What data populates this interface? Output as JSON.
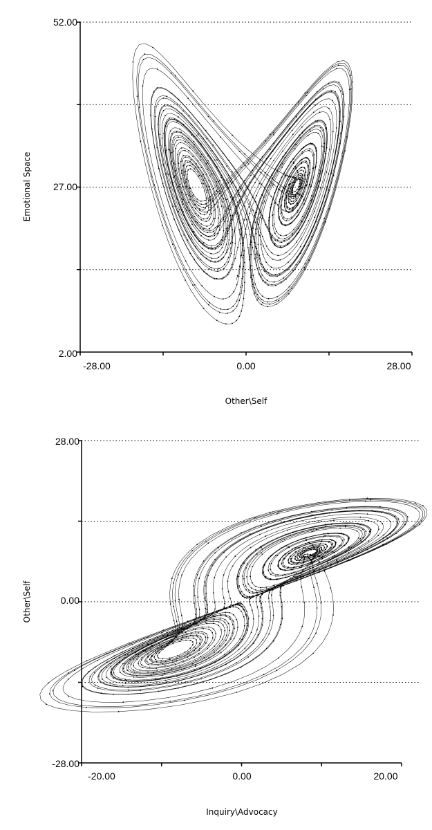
{
  "chart_data": [
    {
      "type": "line",
      "title": "",
      "xlabel": "Other\\Self",
      "ylabel": "Emotional Space",
      "xlim": [
        -28,
        28
      ],
      "ylim": [
        2,
        52
      ],
      "grid": "dotted horizontal",
      "x_ticks": [
        -28,
        -14,
        0,
        14,
        28
      ],
      "y_ticks": [
        2,
        14.5,
        27,
        39.5,
        52
      ],
      "x_tick_labels": [
        "-28.00",
        "0.00",
        "28.00"
      ],
      "y_tick_labels": [
        "52.00",
        "27.00",
        "2.00"
      ],
      "series": [
        {
          "trajectory": "lorenz_xz",
          "x_range": [
            -20,
            19
          ],
          "y_range": [
            9,
            51
          ],
          "lobe_centers": [
            [
              -8.5,
              27
            ],
            [
              8.5,
              27
            ]
          ]
        }
      ]
    },
    {
      "type": "line",
      "title": "",
      "xlabel": "Inquiry\\Advocacy",
      "ylabel": "Other\\Self",
      "xlim": [
        -20,
        20
      ],
      "ylim": [
        -28,
        28
      ],
      "grid": "dotted horizontal",
      "x_ticks": [
        -20,
        -10,
        0,
        10,
        20
      ],
      "y_ticks": [
        -28,
        -14,
        0,
        14,
        28
      ],
      "x_tick_labels": [
        "-20.00",
        "0.00",
        "20.00"
      ],
      "y_tick_labels": [
        "28.00",
        "0.00",
        "-28.00"
      ],
      "series": [
        {
          "trajectory": "lorenz_yx",
          "x_range": [
            -19,
            19
          ],
          "y_range": [
            -26,
            26
          ],
          "lobe_centers": [
            [
              -8.5,
              -8.5
            ],
            [
              8.5,
              8.5
            ]
          ]
        }
      ]
    }
  ]
}
